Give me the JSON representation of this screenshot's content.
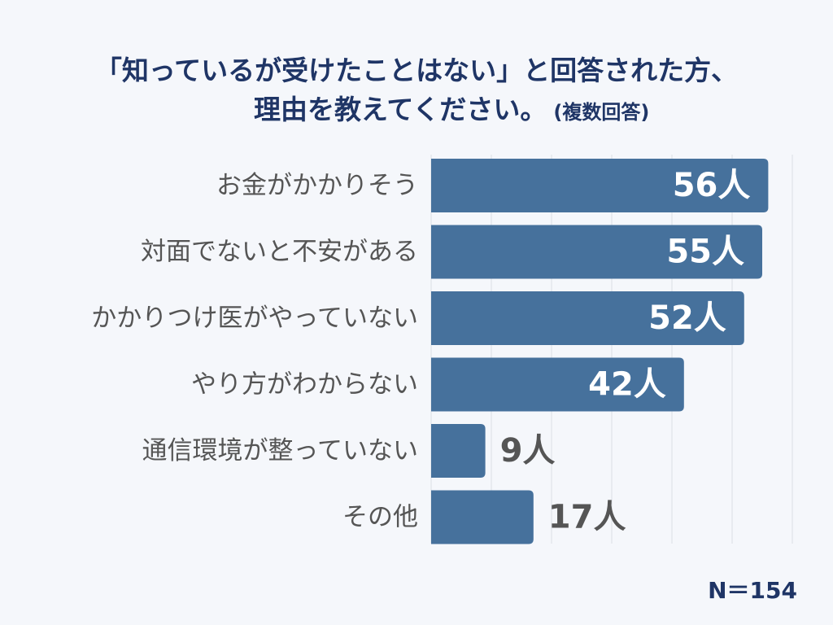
{
  "title": {
    "line1": "「知っているが受けたことはない」と回答された方、",
    "line2": "理由を教えてください。",
    "note": "(複数回答)"
  },
  "sample_size_label": "N＝154",
  "colors": {
    "bar": "#46719c",
    "label_inside": "#ffffff",
    "label_outside": "#555555",
    "category_text": "#555555",
    "grid": "#dcdfe5",
    "title": "#1f3566"
  },
  "chart_data": {
    "type": "bar",
    "orientation": "horizontal",
    "title": "「知っているが受けたことはない」と回答された方、理由を教えてください。(複数回答)",
    "categories": [
      "お金がかかりそう",
      "対面でないと不安がある",
      "かかりつけ医がやっていない",
      "やり方がわからない",
      "通信環境が整っていない",
      "その他"
    ],
    "values": [
      56,
      55,
      52,
      42,
      9,
      17
    ],
    "value_labels": [
      "56人",
      "55人",
      "52人",
      "42人",
      "9人",
      "17人"
    ],
    "unit": "人",
    "xlim": [
      0,
      60
    ],
    "grid": true,
    "xlabel": "",
    "ylabel": ""
  }
}
